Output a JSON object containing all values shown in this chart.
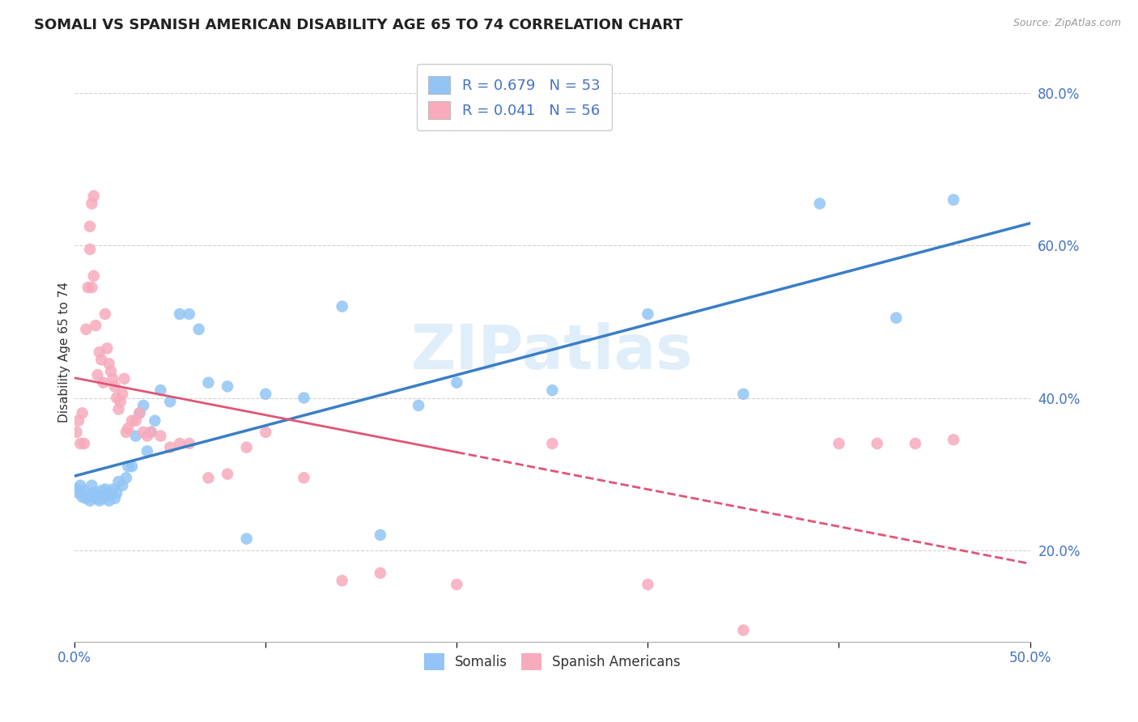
{
  "title": "SOMALI VS SPANISH AMERICAN DISABILITY AGE 65 TO 74 CORRELATION CHART",
  "source": "Source: ZipAtlas.com",
  "xlabel": "",
  "ylabel": "Disability Age 65 to 74",
  "xlim": [
    0.0,
    0.5
  ],
  "ylim": [
    0.08,
    0.84
  ],
  "xticks": [
    0.0,
    0.1,
    0.2,
    0.3,
    0.4,
    0.5
  ],
  "xtick_labels_end_only": true,
  "yticks": [
    0.2,
    0.4,
    0.6,
    0.8
  ],
  "ytick_labels": [
    "20.0%",
    "40.0%",
    "60.0%",
    "80.0%"
  ],
  "somali_R": 0.679,
  "somali_N": 53,
  "spanish_R": 0.041,
  "spanish_N": 56,
  "somali_color": "#92C5F5",
  "spanish_color": "#F7ABBC",
  "somali_line_color": "#3A7EC6",
  "spanish_line_color": "#E05575",
  "background_color": "#FFFFFF",
  "grid_color": "#CCCCCC",
  "watermark": "ZIPatlas",
  "legend_label_1": "Somalis",
  "legend_label_2": "Spanish Americans",
  "somali_x": [
    0.001,
    0.002,
    0.003,
    0.004,
    0.005,
    0.006,
    0.007,
    0.008,
    0.009,
    0.01,
    0.011,
    0.012,
    0.013,
    0.014,
    0.015,
    0.016,
    0.017,
    0.018,
    0.019,
    0.02,
    0.021,
    0.022,
    0.023,
    0.025,
    0.027,
    0.028,
    0.03,
    0.032,
    0.034,
    0.036,
    0.038,
    0.04,
    0.042,
    0.045,
    0.05,
    0.055,
    0.06,
    0.065,
    0.07,
    0.08,
    0.09,
    0.1,
    0.12,
    0.14,
    0.16,
    0.18,
    0.2,
    0.25,
    0.3,
    0.35,
    0.39,
    0.43,
    0.46
  ],
  "somali_y": [
    0.28,
    0.275,
    0.285,
    0.27,
    0.278,
    0.268,
    0.272,
    0.265,
    0.285,
    0.275,
    0.268,
    0.272,
    0.265,
    0.278,
    0.268,
    0.28,
    0.272,
    0.265,
    0.275,
    0.28,
    0.268,
    0.275,
    0.29,
    0.285,
    0.295,
    0.31,
    0.31,
    0.35,
    0.38,
    0.39,
    0.33,
    0.355,
    0.37,
    0.41,
    0.395,
    0.51,
    0.51,
    0.49,
    0.42,
    0.415,
    0.215,
    0.405,
    0.4,
    0.52,
    0.22,
    0.39,
    0.42,
    0.41,
    0.51,
    0.405,
    0.655,
    0.505,
    0.66
  ],
  "spanish_x": [
    0.001,
    0.002,
    0.003,
    0.004,
    0.005,
    0.006,
    0.007,
    0.008,
    0.009,
    0.01,
    0.011,
    0.012,
    0.013,
    0.014,
    0.015,
    0.016,
    0.017,
    0.018,
    0.019,
    0.02,
    0.021,
    0.022,
    0.023,
    0.024,
    0.025,
    0.026,
    0.027,
    0.028,
    0.03,
    0.032,
    0.034,
    0.036,
    0.038,
    0.04,
    0.045,
    0.05,
    0.055,
    0.06,
    0.07,
    0.08,
    0.09,
    0.1,
    0.12,
    0.14,
    0.16,
    0.2,
    0.25,
    0.3,
    0.35,
    0.4,
    0.42,
    0.44,
    0.46,
    0.008,
    0.009,
    0.01
  ],
  "spanish_y": [
    0.355,
    0.37,
    0.34,
    0.38,
    0.34,
    0.49,
    0.545,
    0.595,
    0.545,
    0.56,
    0.495,
    0.43,
    0.46,
    0.45,
    0.42,
    0.51,
    0.465,
    0.445,
    0.435,
    0.425,
    0.415,
    0.4,
    0.385,
    0.395,
    0.405,
    0.425,
    0.355,
    0.36,
    0.37,
    0.37,
    0.38,
    0.355,
    0.35,
    0.355,
    0.35,
    0.335,
    0.34,
    0.34,
    0.295,
    0.3,
    0.335,
    0.355,
    0.295,
    0.16,
    0.17,
    0.155,
    0.34,
    0.155,
    0.095,
    0.34,
    0.34,
    0.34,
    0.345,
    0.625,
    0.655,
    0.665
  ]
}
